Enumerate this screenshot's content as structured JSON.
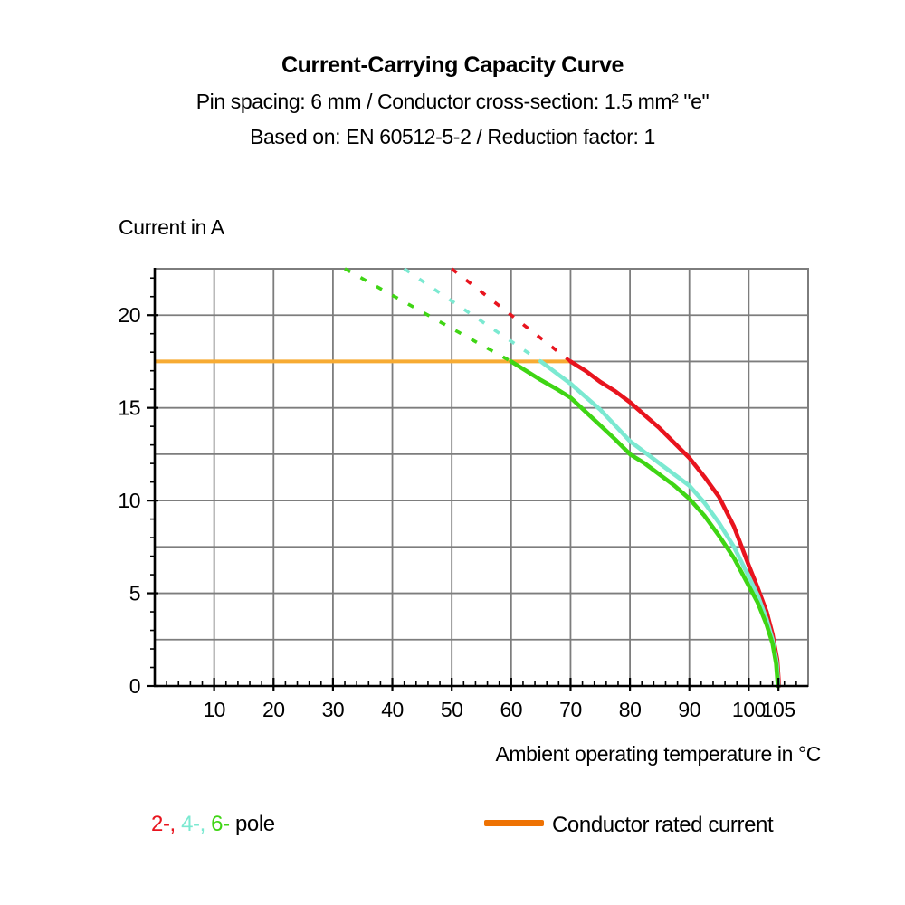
{
  "header": {
    "title": "Current-Carrying Capacity Curve",
    "subtitle1": "Pin spacing: 6 mm / Conductor cross-section: 1.5 mm² \"e\"",
    "subtitle2": "Based on: EN 60512-5-2 / Reduction factor: 1"
  },
  "chart_data": {
    "type": "line",
    "title": "Current-Carrying Capacity Curve",
    "xlabel": "Ambient operating temperature in °C",
    "ylabel": "Current in A",
    "xlim": [
      0,
      110
    ],
    "ylim": [
      0,
      22.5
    ],
    "x_major_ticks": [
      10,
      20,
      30,
      40,
      50,
      60,
      70,
      80,
      90,
      100,
      105
    ],
    "y_major_ticks": [
      0,
      5,
      10,
      15,
      20
    ],
    "x_minor_step": 2,
    "y_minor_step": 1,
    "grid": {
      "on": true,
      "x_step": 10,
      "y_step": 2.5,
      "color": "#7d7d7d"
    },
    "rated_current_A": 17.5,
    "series": [
      {
        "name": "Conductor rated current",
        "color": "#f7ab33",
        "style": "solid",
        "points": [
          [
            0,
            17.5
          ],
          [
            70,
            17.5
          ]
        ]
      },
      {
        "name": "2-pole",
        "color": "#e8141e",
        "style": "dashed-then-solid",
        "dashed": [
          [
            50,
            22.5
          ],
          [
            70,
            17.5
          ]
        ],
        "solid": [
          [
            70,
            17.5
          ],
          [
            72.5,
            17.0
          ],
          [
            75,
            16.4
          ],
          [
            77.5,
            15.9
          ],
          [
            80,
            15.3
          ],
          [
            82.5,
            14.6
          ],
          [
            85,
            13.9
          ],
          [
            87.5,
            13.1
          ],
          [
            90,
            12.3
          ],
          [
            92.5,
            11.3
          ],
          [
            95,
            10.2
          ],
          [
            97.5,
            8.6
          ],
          [
            100,
            6.5
          ],
          [
            101.5,
            5.3
          ],
          [
            103,
            4.0
          ],
          [
            104,
            2.8
          ],
          [
            104.8,
            1.4
          ],
          [
            105.1,
            0
          ]
        ]
      },
      {
        "name": "4-pole",
        "color": "#7be9d1",
        "style": "dashed-then-solid",
        "dashed": [
          [
            42,
            22.5
          ],
          [
            65,
            17.5
          ]
        ],
        "solid": [
          [
            65,
            17.5
          ],
          [
            67.5,
            16.9
          ],
          [
            70,
            16.3
          ],
          [
            72.5,
            15.6
          ],
          [
            75,
            14.9
          ],
          [
            77.5,
            14.05
          ],
          [
            80,
            13.2
          ],
          [
            82.5,
            12.6
          ],
          [
            85,
            12.0
          ],
          [
            87.5,
            11.4
          ],
          [
            90,
            10.8
          ],
          [
            92.5,
            9.9
          ],
          [
            95,
            8.8
          ],
          [
            97.5,
            7.5
          ],
          [
            100,
            5.9
          ],
          [
            101.5,
            4.9
          ],
          [
            103,
            3.6
          ],
          [
            104,
            2.5
          ],
          [
            104.7,
            1.3
          ],
          [
            105,
            0
          ]
        ]
      },
      {
        "name": "6-pole",
        "color": "#3fd514",
        "style": "dashed-then-solid",
        "dashed": [
          [
            32,
            22.5
          ],
          [
            60,
            17.5
          ]
        ],
        "solid": [
          [
            60,
            17.5
          ],
          [
            62.5,
            17.0
          ],
          [
            65,
            16.5
          ],
          [
            67.5,
            16.05
          ],
          [
            70,
            15.55
          ],
          [
            72.5,
            14.8
          ],
          [
            75,
            14.05
          ],
          [
            77.5,
            13.3
          ],
          [
            80,
            12.5
          ],
          [
            82.5,
            12.0
          ],
          [
            85,
            11.4
          ],
          [
            87.5,
            10.8
          ],
          [
            90,
            10.1
          ],
          [
            92.5,
            9.2
          ],
          [
            95,
            8.1
          ],
          [
            97.5,
            6.9
          ],
          [
            100,
            5.4
          ],
          [
            101.5,
            4.5
          ],
          [
            103,
            3.3
          ],
          [
            104,
            2.3
          ],
          [
            104.6,
            1.2
          ],
          [
            104.9,
            0
          ]
        ]
      }
    ],
    "legend_position": "bottom"
  },
  "legend": {
    "poles": [
      {
        "label": "2-,",
        "color": "#e8141e"
      },
      {
        "label": " 4-,",
        "color": "#7be9d1"
      },
      {
        "label": " 6-",
        "color": "#3fd514"
      }
    ],
    "poles_suffix": " pole",
    "rated": {
      "label": "Conductor rated current",
      "swatch_color": "#ee7203"
    }
  }
}
